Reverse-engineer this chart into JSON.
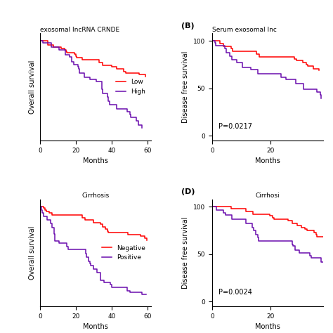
{
  "title_A": "exosomal lncRNA CRNDE",
  "title_B": "Serum exosomal lnc",
  "title_C": "Cirrhosis",
  "title_D": "Cirrhosi",
  "ylabel_left": "Overall survival",
  "ylabel_right": "Disease free survival",
  "xlabel": "Months",
  "pvalue_B": "P=0.0217",
  "pvalue_D": "P=0.0024",
  "color_red": "#FF0000",
  "color_purple": "#6A0DAD",
  "background": "#FFFFFF",
  "legend_A": [
    "Low",
    "High"
  ],
  "legend_C": [
    "Negative",
    "Positive"
  ]
}
